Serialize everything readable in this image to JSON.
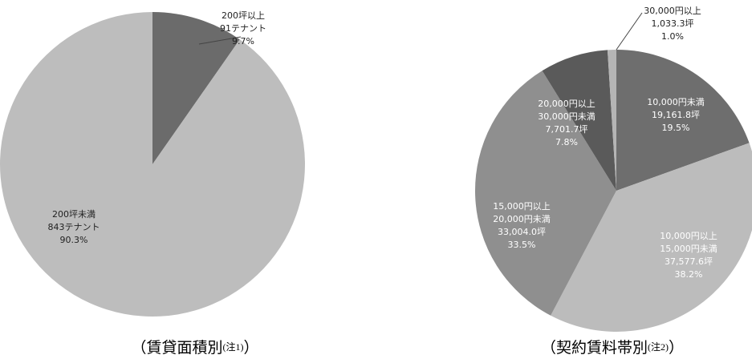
{
  "chart_data": [
    {
      "type": "pie",
      "title": "（賃貸面積別",
      "title_note": "(注1)",
      "title_end": "）",
      "categories": [
        [
          "200坪以上"
        ],
        [
          "200坪未満"
        ]
      ],
      "sub_labels": [
        "91テナント",
        "843テナント"
      ],
      "values": [
        9.7,
        90.3
      ],
      "value_labels": [
        "9.7%",
        "90.3%"
      ],
      "colors": [
        "#6b6b6b",
        "#bdbdbd"
      ]
    },
    {
      "type": "pie",
      "title": "（契約賃料帯別",
      "title_note": "(注2)",
      "title_end": "）",
      "categories": [
        [
          "10,000円未満"
        ],
        [
          "10,000円以上",
          "15,000円未満"
        ],
        [
          "15,000円以上",
          "20,000円未満"
        ],
        [
          "20,000円以上",
          "30,000円未満"
        ],
        [
          "30,000円以上"
        ]
      ],
      "sub_labels": [
        "19,161.8坪",
        "37,577.6坪",
        "33,004.0坪",
        "7,701.7坪",
        "1,033.3坪"
      ],
      "values": [
        19.5,
        38.2,
        33.5,
        7.8,
        1.0
      ],
      "value_labels": [
        "19.5%",
        "38.2%",
        "33.5%",
        "7.8%",
        "1.0%"
      ],
      "colors": [
        "#6e6e6e",
        "#bcbcbc",
        "#8f8f8f",
        "#5a5a5a",
        "#b5b5b5"
      ]
    }
  ]
}
